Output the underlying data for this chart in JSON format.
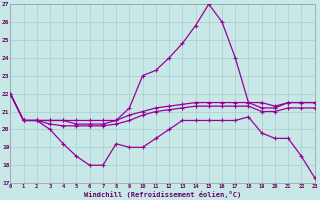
{
  "background_color": "#c8e8e8",
  "grid_color": "#b0d0d0",
  "line_color": "#990099",
  "xlim": [
    0,
    23
  ],
  "ylim": [
    17,
    27
  ],
  "xtick_labels": [
    "0",
    "1",
    "2",
    "3",
    "4",
    "5",
    "6",
    "7",
    "8",
    "9",
    "10",
    "11",
    "12",
    "13",
    "14",
    "15",
    "16",
    "17",
    "18",
    "19",
    "20",
    "21",
    "22",
    "23"
  ],
  "ytick_labels": [
    "17",
    "18",
    "19",
    "20",
    "21",
    "22",
    "23",
    "24",
    "25",
    "26",
    "27"
  ],
  "xlabel": "Windchill (Refroidissement éolien,°C)",
  "series_high": [
    22.0,
    20.5,
    20.5,
    20.5,
    20.5,
    20.5,
    20.5,
    20.5,
    20.5,
    21.2,
    23.0,
    23.3,
    24.0,
    24.8,
    25.8,
    27.0,
    26.0,
    24.0,
    21.5,
    21.5,
    21.3,
    21.5,
    21.5,
    21.5
  ],
  "series_low": [
    22.0,
    20.5,
    20.5,
    20.0,
    19.2,
    18.5,
    18.0,
    18.0,
    19.2,
    19.0,
    19.0,
    19.5,
    20.0,
    20.5,
    20.5,
    20.5,
    20.5,
    20.5,
    20.7,
    19.8,
    19.5,
    19.5,
    18.5,
    17.3
  ],
  "series_mid1": [
    22.0,
    20.5,
    20.5,
    20.5,
    20.5,
    20.3,
    20.3,
    20.3,
    20.5,
    20.8,
    21.0,
    21.2,
    21.3,
    21.4,
    21.5,
    21.5,
    21.5,
    21.5,
    21.5,
    21.2,
    21.2,
    21.5,
    21.5,
    21.5
  ],
  "series_mid2": [
    22.0,
    20.5,
    20.5,
    20.3,
    20.2,
    20.2,
    20.2,
    20.2,
    20.3,
    20.5,
    20.8,
    21.0,
    21.1,
    21.2,
    21.3,
    21.3,
    21.3,
    21.3,
    21.3,
    21.0,
    21.0,
    21.2,
    21.2,
    21.2
  ]
}
